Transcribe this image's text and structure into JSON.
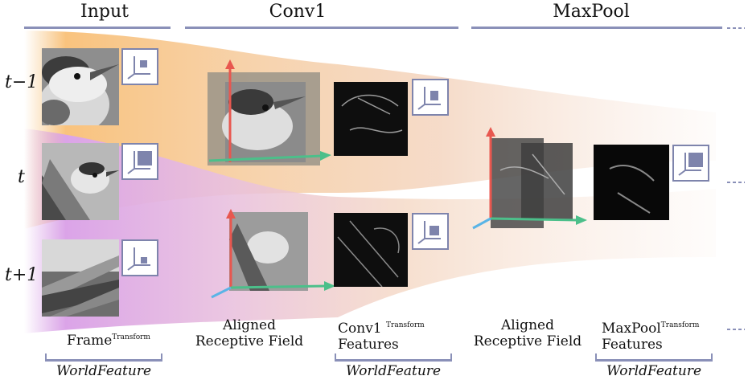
{
  "stages": {
    "input": "Input",
    "conv1": "Conv1",
    "maxpool": "MaxPool"
  },
  "rows": {
    "t_minus_1": "t−1",
    "t": "t",
    "t_plus_1": "t+1"
  },
  "captions": {
    "frame": "Frame",
    "frame_sup": "Transform",
    "aligned_rf_1_line1": "Aligned",
    "aligned_rf_1_line2": "Receptive Field",
    "conv1_feat_line1": "Conv1",
    "conv1_feat_sup": "Transform",
    "conv1_feat_line2": "Features",
    "aligned_rf_2_line1": "Aligned",
    "aligned_rf_2_line2": "Receptive Field",
    "maxpool_feat_line1": "MaxPool",
    "maxpool_feat_sup": "Transform",
    "maxpool_feat_line2": "Features"
  },
  "world_feature": "WorldFeature",
  "colors": {
    "accent_line": "#8a90b8",
    "flow_orange": "#f7c98a",
    "flow_purple": "#d9a3e6",
    "flow_peach": "#f3d2bb",
    "axis_red": "#e8574f",
    "axis_green": "#4cbf8a",
    "axis_blue": "#5ab4e6",
    "icon_fill": "#7e84ac"
  },
  "icons": [
    "transform-icon"
  ]
}
